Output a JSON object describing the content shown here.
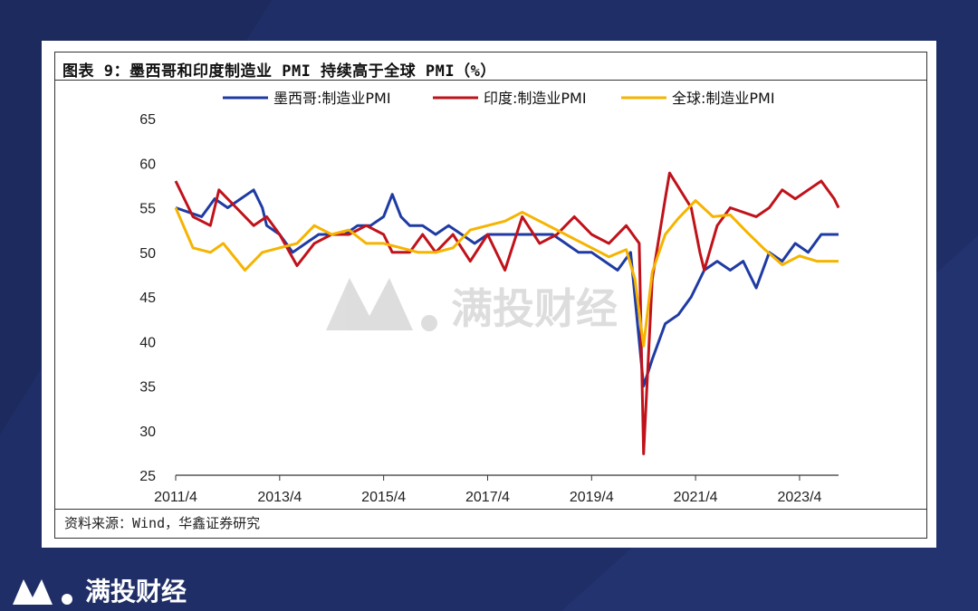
{
  "page": {
    "title": "图表 9：墨西哥和印度制造业 PMI 持续高于全球 PMI（%）",
    "source": "资料来源：Wind，华鑫证券研究",
    "brand": "满投财经",
    "watermark": "满投财经"
  },
  "colors": {
    "background": "#1c2a5e",
    "mexico": "#1f3ba3",
    "india": "#c0121a",
    "global": "#f5b400"
  },
  "chart_data": {
    "type": "line",
    "title": "墨西哥和印度制造业 PMI 持续高于全球 PMI（%）",
    "xlabel": "",
    "ylabel": "",
    "ylim": [
      25,
      65
    ],
    "yticks": [
      25,
      30,
      35,
      40,
      45,
      50,
      55,
      60,
      65
    ],
    "xticks": [
      "2011/4",
      "2013/4",
      "2015/4",
      "2017/4",
      "2019/4",
      "2021/4",
      "2023/4"
    ],
    "x_range": [
      "2011/4",
      "2024/1"
    ],
    "grid": false,
    "legend": "top",
    "series": [
      {
        "name": "墨西哥:制造业PMI",
        "color": "#1f3ba3",
        "points": [
          [
            "2011/4",
            55
          ],
          [
            "2011/10",
            54
          ],
          [
            "2012/1",
            56
          ],
          [
            "2012/4",
            55
          ],
          [
            "2012/7",
            56
          ],
          [
            "2012/10",
            57
          ],
          [
            "2012/12",
            55
          ],
          [
            "2013/1",
            53
          ],
          [
            "2013/4",
            52
          ],
          [
            "2013/7",
            50
          ],
          [
            "2013/10",
            51
          ],
          [
            "2014/1",
            52
          ],
          [
            "2014/4",
            52
          ],
          [
            "2014/7",
            52
          ],
          [
            "2014/10",
            53
          ],
          [
            "2015/1",
            53
          ],
          [
            "2015/4",
            54
          ],
          [
            "2015/6",
            56.5
          ],
          [
            "2015/8",
            54
          ],
          [
            "2015/10",
            53
          ],
          [
            "2016/1",
            53
          ],
          [
            "2016/4",
            52
          ],
          [
            "2016/7",
            53
          ],
          [
            "2016/10",
            52
          ],
          [
            "2017/1",
            51
          ],
          [
            "2017/4",
            52
          ],
          [
            "2017/7",
            52
          ],
          [
            "2017/10",
            52
          ],
          [
            "2018/1",
            52
          ],
          [
            "2018/4",
            52
          ],
          [
            "2018/7",
            52
          ],
          [
            "2018/10",
            51
          ],
          [
            "2019/1",
            50
          ],
          [
            "2019/4",
            50
          ],
          [
            "2019/7",
            49
          ],
          [
            "2019/10",
            48
          ],
          [
            "2020/1",
            50
          ],
          [
            "2020/4",
            35
          ],
          [
            "2020/6",
            38
          ],
          [
            "2020/9",
            42
          ],
          [
            "2020/12",
            43
          ],
          [
            "2021/3",
            45
          ],
          [
            "2021/6",
            48
          ],
          [
            "2021/9",
            49
          ],
          [
            "2021/12",
            48
          ],
          [
            "2022/3",
            49
          ],
          [
            "2022/6",
            46
          ],
          [
            "2022/9",
            50
          ],
          [
            "2022/12",
            49
          ],
          [
            "2023/3",
            51
          ],
          [
            "2023/6",
            50
          ],
          [
            "2023/9",
            52
          ],
          [
            "2024/1",
            52
          ]
        ]
      },
      {
        "name": "印度:制造业PMI",
        "color": "#c0121a",
        "points": [
          [
            "2011/4",
            58
          ],
          [
            "2011/8",
            54
          ],
          [
            "2011/12",
            53
          ],
          [
            "2012/2",
            57
          ],
          [
            "2012/6",
            55
          ],
          [
            "2012/10",
            53
          ],
          [
            "2013/1",
            54
          ],
          [
            "2013/4",
            52
          ],
          [
            "2013/8",
            48.5
          ],
          [
            "2013/12",
            51
          ],
          [
            "2014/4",
            52
          ],
          [
            "2014/8",
            52
          ],
          [
            "2014/12",
            53
          ],
          [
            "2015/4",
            52
          ],
          [
            "2015/6",
            50
          ],
          [
            "2015/10",
            50
          ],
          [
            "2016/1",
            52
          ],
          [
            "2016/4",
            50
          ],
          [
            "2016/8",
            52
          ],
          [
            "2016/12",
            49
          ],
          [
            "2017/4",
            52
          ],
          [
            "2017/8",
            48
          ],
          [
            "2017/12",
            54
          ],
          [
            "2018/4",
            51
          ],
          [
            "2018/8",
            52
          ],
          [
            "2018/12",
            54
          ],
          [
            "2019/4",
            52
          ],
          [
            "2019/8",
            51
          ],
          [
            "2019/12",
            53
          ],
          [
            "2020/3",
            51
          ],
          [
            "2020/4",
            27.4
          ],
          [
            "2020/6",
            47
          ],
          [
            "2020/9",
            56
          ],
          [
            "2020/10",
            58.9
          ],
          [
            "2021/3",
            55
          ],
          [
            "2021/5",
            50
          ],
          [
            "2021/6",
            48
          ],
          [
            "2021/9",
            53
          ],
          [
            "2021/12",
            55
          ],
          [
            "2022/6",
            54
          ],
          [
            "2022/9",
            55
          ],
          [
            "2022/12",
            57
          ],
          [
            "2023/3",
            56
          ],
          [
            "2023/6",
            57
          ],
          [
            "2023/9",
            58
          ],
          [
            "2023/12",
            56
          ],
          [
            "2024/1",
            55
          ]
        ]
      },
      {
        "name": "全球:制造业PMI",
        "color": "#f5b400",
        "points": [
          [
            "2011/4",
            55
          ],
          [
            "2011/8",
            50.5
          ],
          [
            "2011/12",
            50
          ],
          [
            "2012/3",
            51
          ],
          [
            "2012/8",
            48
          ],
          [
            "2012/12",
            50
          ],
          [
            "2013/4",
            50.5
          ],
          [
            "2013/8",
            51
          ],
          [
            "2013/12",
            53
          ],
          [
            "2014/4",
            52
          ],
          [
            "2014/8",
            52.5
          ],
          [
            "2014/12",
            51
          ],
          [
            "2015/4",
            51
          ],
          [
            "2015/8",
            50.5
          ],
          [
            "2015/12",
            50
          ],
          [
            "2016/4",
            50
          ],
          [
            "2016/8",
            50.5
          ],
          [
            "2016/12",
            52.5
          ],
          [
            "2017/4",
            53
          ],
          [
            "2017/8",
            53.5
          ],
          [
            "2017/12",
            54.5
          ],
          [
            "2018/4",
            53.5
          ],
          [
            "2018/8",
            52.5
          ],
          [
            "2018/12",
            51.5
          ],
          [
            "2019/4",
            50.5
          ],
          [
            "2019/8",
            49.5
          ],
          [
            "2019/12",
            50.3
          ],
          [
            "2020/2",
            47
          ],
          [
            "2020/4",
            39.5
          ],
          [
            "2020/6",
            47.8
          ],
          [
            "2020/9",
            52
          ],
          [
            "2020/12",
            53.8
          ],
          [
            "2021/4",
            55.8
          ],
          [
            "2021/8",
            54
          ],
          [
            "2021/12",
            54.2
          ],
          [
            "2022/4",
            52.2
          ],
          [
            "2022/8",
            50.3
          ],
          [
            "2022/12",
            48.6
          ],
          [
            "2023/4",
            49.6
          ],
          [
            "2023/8",
            49
          ],
          [
            "2023/12",
            49
          ],
          [
            "2024/1",
            49
          ]
        ]
      }
    ]
  }
}
